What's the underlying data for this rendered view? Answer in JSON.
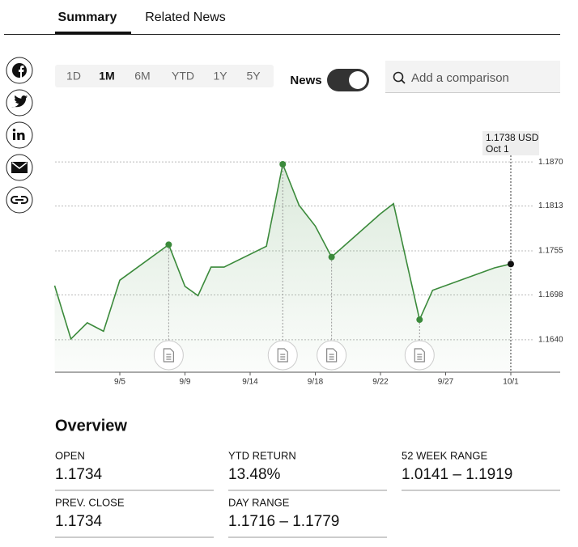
{
  "tabs": [
    "Summary",
    "Related News"
  ],
  "ranges": [
    "1D",
    "1M",
    "6M",
    "YTD",
    "1Y",
    "5Y"
  ],
  "news_toggle": "News",
  "search_placeholder": "Add a comparison",
  "chart_data": {
    "type": "line",
    "color": "#3b8a3b",
    "x": [
      "9/1",
      "9/2",
      "9/3",
      "9/4",
      "9/5",
      "9/8",
      "9/9",
      "9/10",
      "9/11",
      "9/12",
      "9/15",
      "9/16",
      "9/17",
      "9/18",
      "9/19",
      "9/22",
      "9/23",
      "9/25",
      "9/26",
      "9/30",
      "10/1"
    ],
    "values": [
      1.171,
      1.1641,
      1.1662,
      1.1651,
      1.1717,
      1.1763,
      1.1709,
      1.1697,
      1.1734,
      1.1734,
      1.1761,
      1.1867,
      1.1814,
      1.1787,
      1.1747,
      1.1803,
      1.1816,
      1.1666,
      1.1704,
      1.1733,
      1.1738
    ],
    "news_points": [
      5,
      11,
      14,
      17
    ],
    "xticks": [
      "9/5",
      "9/9",
      "9/14",
      "9/18",
      "9/22",
      "9/27",
      "10/1"
    ],
    "ylim": [
      1.1598,
      1.1912
    ],
    "yticks": [
      {
        "value": 1.187,
        "label": "1.1870"
      },
      1.1813,
      1.1755,
      1.1698,
      {
        "value": 1.164,
        "label": "1.1640"
      }
    ],
    "grid": true,
    "tooltip_value": "1.1738 USD",
    "tooltip_date": "Oct 1"
  },
  "overview": {
    "title": "Overview",
    "fields": [
      {
        "label": "OPEN",
        "value": "1.1734"
      },
      {
        "label": "YTD RETURN",
        "value": "13.48%"
      },
      {
        "label": "52 WEEK RANGE",
        "value": "1.0141 – 1.1919"
      },
      {
        "label": "PREV. CLOSE",
        "value": "1.1734"
      },
      {
        "label": "DAY RANGE",
        "value": "1.1716 – 1.1779"
      }
    ]
  }
}
